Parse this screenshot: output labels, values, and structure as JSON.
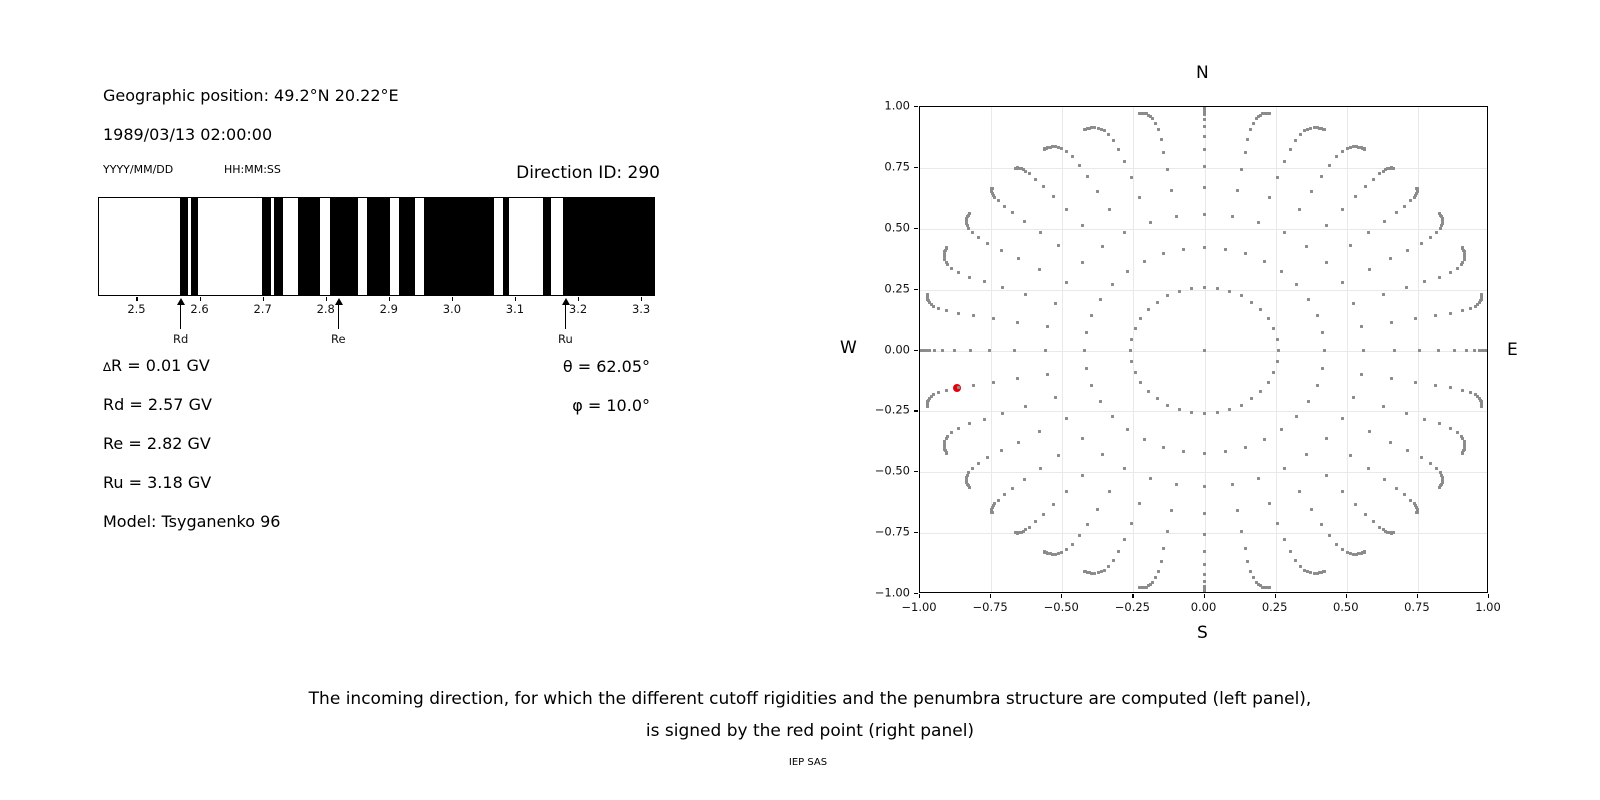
{
  "header": {
    "geographic_position": "Geographic position: 49.2°N 20.22°E",
    "datetime": "1989/03/13 02:00:00",
    "date_format_label": "YYYY/MM/DD",
    "time_format_label": "HH:MM:SS",
    "direction_id": "Direction ID: 290"
  },
  "params": {
    "left_lines": [
      "∆R = 0.01 GV",
      "Rd = 2.57 GV",
      "Re = 2.82 GV",
      "Ru = 3.18 GV",
      "Model: Tsyganenko 96"
    ],
    "theta": "θ = 62.05°",
    "phi": "φ = 10.0°"
  },
  "caption": {
    "line1": "The incoming direction, for which the different cutoff rigidities and the penumbra structure are computed (left panel),",
    "line2": "is signed by the red point (right panel)",
    "credit": "IEP SAS"
  },
  "chart_data": [
    {
      "type": "bar",
      "title": "",
      "description": "Penumbra structure: black bars mark allowed rigidity intervals (GV)",
      "xlim": [
        2.439,
        3.322
      ],
      "xticks": [
        2.5,
        2.6,
        2.7,
        2.8,
        2.9,
        3.0,
        3.1,
        3.2,
        3.3
      ],
      "bar_color": "#000000",
      "bars_gv": [
        [
          2.568,
          2.58
        ],
        [
          2.585,
          2.597
        ],
        [
          2.698,
          2.712
        ],
        [
          2.717,
          2.732
        ],
        [
          2.756,
          2.79
        ],
        [
          2.806,
          2.851
        ],
        [
          2.865,
          2.902
        ],
        [
          2.916,
          2.941
        ],
        [
          2.956,
          3.068
        ],
        [
          3.081,
          3.092
        ],
        [
          3.146,
          3.158
        ],
        [
          3.177,
          3.322
        ]
      ],
      "annotations": [
        {
          "label": "Rd",
          "value_gv": 2.57
        },
        {
          "label": "Re",
          "value_gv": 2.82
        },
        {
          "label": "Ru",
          "value_gv": 3.18
        }
      ]
    },
    {
      "type": "scatter",
      "title": "",
      "description": "Grid of incoming directions; dots at radius sin(zenith) along azimuth spokes, N up / E right / S down / W left",
      "xlim": [
        -1.0,
        1.0
      ],
      "ylim": [
        -1.0,
        1.0
      ],
      "xticks": [
        -1.0,
        -0.75,
        -0.5,
        -0.25,
        0.0,
        0.25,
        0.5,
        0.75,
        1.0
      ],
      "yticks": [
        -1.0,
        -0.75,
        -0.5,
        -0.25,
        0.0,
        0.25,
        0.5,
        0.75,
        1.0
      ],
      "grid": true,
      "compass": {
        "n": "N",
        "e": "E",
        "s": "S",
        "w": "W"
      },
      "dot_color": "#8b8b8b",
      "dot_grid": {
        "azimuth_count": 36,
        "azimuth_step_deg": 10,
        "zenith_angles_deg": [
          15,
          25,
          34,
          42,
          49,
          55.5,
          61.5,
          67,
          71.8,
          75.5,
          78,
          80.5,
          83,
          85,
          86.8,
          88.2,
          89.3,
          90
        ],
        "bend": {
          "threshold_deg": 60,
          "amplitude_deg": 5
        },
        "center_dot": true
      },
      "red_point": {
        "x": -0.87,
        "y": -0.153,
        "theta_deg": 62.05,
        "phi_deg": 10.0,
        "color": "#e8000b"
      }
    }
  ]
}
